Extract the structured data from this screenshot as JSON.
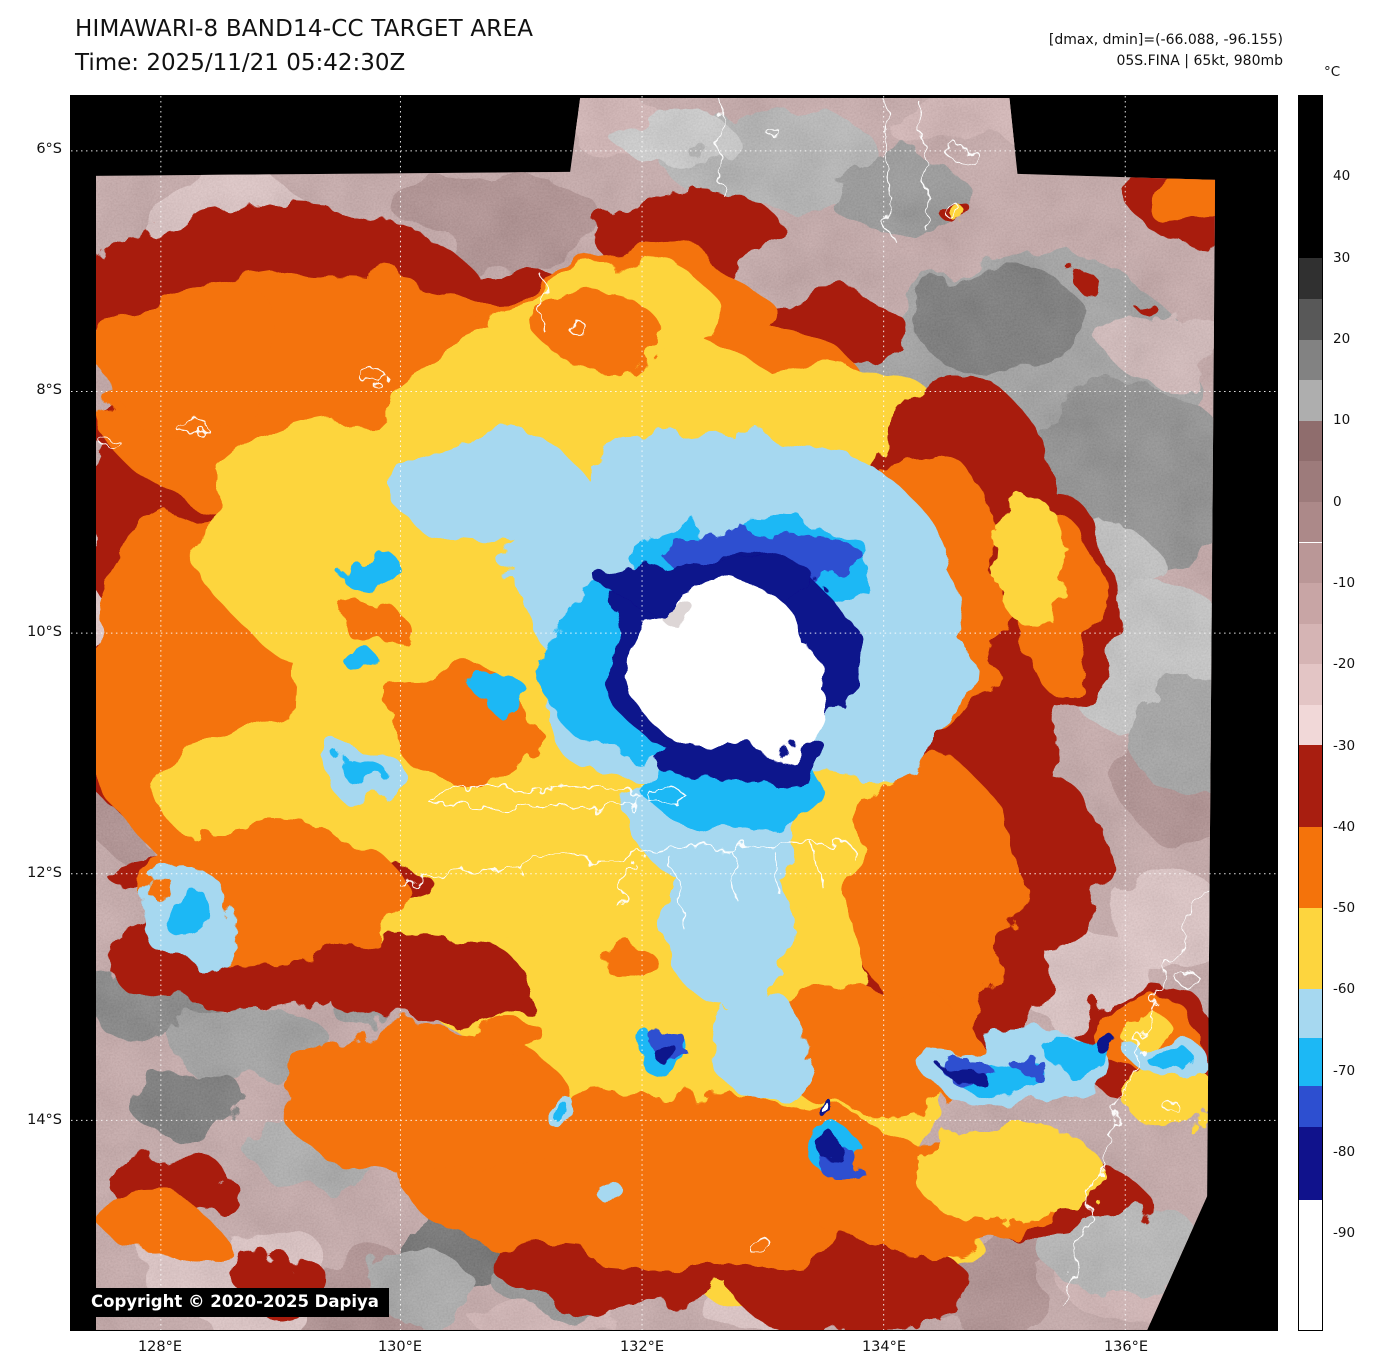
{
  "header": {
    "title": "HIMAWARI-8 BAND14-CC TARGET AREA",
    "time": "Time: 2025/11/21 05:42:30Z",
    "dmax_dmin": "[dmax, dmin]=(-66.088, -96.155)",
    "storm": "05S.FINA | 65kt, 980mb"
  },
  "axes": {
    "y_ticks": [
      "6°S",
      "8°S",
      "10°S",
      "12°S",
      "14°S"
    ],
    "x_ticks": [
      "128°E",
      "130°E",
      "132°E",
      "134°E",
      "136°E"
    ]
  },
  "colorbar": {
    "unit": "°C",
    "range_c": [
      50,
      -102
    ],
    "ticks": [
      40,
      30,
      20,
      10,
      0,
      -10,
      -20,
      -30,
      -40,
      -50,
      -60,
      -70,
      -80,
      -90
    ],
    "segments": [
      {
        "from": 50,
        "to": 30,
        "color": "#000000"
      },
      {
        "from": 30,
        "to": 25,
        "color": "#303030"
      },
      {
        "from": 25,
        "to": 20,
        "color": "#585858"
      },
      {
        "from": 20,
        "to": 15,
        "color": "#828282"
      },
      {
        "from": 15,
        "to": 10,
        "color": "#aeaeae"
      },
      {
        "from": 10,
        "to": 5,
        "color": "#8f6d6d"
      },
      {
        "from": 5,
        "to": 0,
        "color": "#9d7b7b"
      },
      {
        "from": 0,
        "to": -5,
        "color": "#ac8989"
      },
      {
        "from": -5,
        "to": -10,
        "color": "#ba9797"
      },
      {
        "from": -10,
        "to": -15,
        "color": "#c8a5a5"
      },
      {
        "from": -15,
        "to": -20,
        "color": "#d5b4b4"
      },
      {
        "from": -20,
        "to": -25,
        "color": "#e3c5c5"
      },
      {
        "from": -25,
        "to": -30,
        "color": "#f1d8d8"
      },
      {
        "from": -30,
        "to": -40,
        "color": "#a81e10"
      },
      {
        "from": -40,
        "to": -50,
        "color": "#f4730b"
      },
      {
        "from": -50,
        "to": -60,
        "color": "#fdd53e"
      },
      {
        "from": -60,
        "to": -66,
        "color": "#a6d8f0"
      },
      {
        "from": -66,
        "to": -72,
        "color": "#1cb8f5"
      },
      {
        "from": -72,
        "to": -77,
        "color": "#2d4fd0"
      },
      {
        "from": -77,
        "to": -86,
        "color": "#10128c"
      },
      {
        "from": -86,
        "to": -102,
        "color": "#ffffff"
      }
    ]
  },
  "map": {
    "copyright": "Copyright © 2020-2025 Dapiya",
    "palette": {
      "background": "#ffffff",
      "frame_fill": "#000000",
      "grid": "#ffffff",
      "coastline": "#ffffff",
      "base_rose": "#c7a4a4",
      "dark_red": "#a81e10",
      "orange": "#f4730b",
      "yellow": "#fdd53e",
      "light_blue": "#a6d8f0",
      "cyan": "#1cb8f5",
      "royal_blue": "#2d4fd0",
      "navy": "#10128c",
      "cold_white": "#ffffff"
    }
  }
}
